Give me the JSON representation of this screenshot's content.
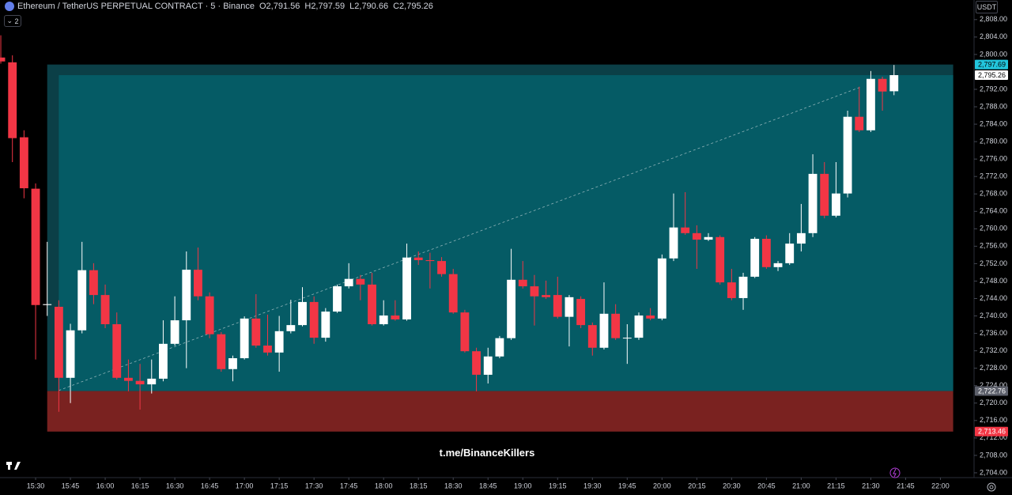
{
  "header": {
    "symbol": "Ethereum / TetherUS PERPETUAL CONTRACT · 5 · Binance",
    "quote": [
      {
        "key": "O",
        "value": "2,791.56"
      },
      {
        "key": "H",
        "value": "2,797.59"
      },
      {
        "key": "L",
        "value": "2,790.66"
      },
      {
        "key": "C",
        "value": "2,795.26"
      }
    ],
    "indicator_count": "2",
    "currency": "USDT"
  },
  "watermark": "t.me/BinanceKillers",
  "chart_data": {
    "type": "candlestick",
    "up_color": "#ffffff",
    "down_color": "#f23645",
    "xlim": [
      -0.07,
      83.9
    ],
    "ylim": [
      2702.9,
      2812.5
    ],
    "open": [
      2799.3,
      2798.2,
      2781,
      2769.2,
      2742.5,
      2742.1,
      2725.8,
      2736.7,
      2750.5,
      2744.8,
      2738.1,
      2725.8,
      2725.1,
      2724.3,
      2725.6,
      2733.6,
      2739,
      2750.6,
      2744.5,
      2735.8,
      2727.8,
      2730.3,
      2739.4,
      2733.2,
      2731.6,
      2736.5,
      2737.9,
      2743.2,
      2735,
      2741,
      2746.8,
      2748.5,
      2747.2,
      2738.1,
      2740.1,
      2739.2,
      2753.4,
      2752.8,
      2752.6,
      2749.6,
      2740.8,
      2731.9,
      2726.5,
      2730.7,
      2734.9,
      2748.3,
      2746.8,
      2744.8,
      2744.8,
      2739.8,
      2743.9,
      2737.9,
      2732.7,
      2740.5,
      2734.9,
      2735,
      2740.1,
      2739.4,
      2753.2,
      2760.3,
      2759,
      2757.5,
      2758.1,
      2747.7,
      2744.1,
      2749,
      2757.7,
      2751.2,
      2752.1,
      2756.6,
      2759,
      2772.6,
      2763,
      2768.1,
      2785.7,
      2782.6,
      2794.4,
      2791.56
    ],
    "high": [
      2804.4,
      2799.8,
      2782.6,
      2770.4,
      2757,
      2743.6,
      2738.2,
      2757,
      2752.1,
      2747.2,
      2740.8,
      2730,
      2729,
      2730,
      2739,
      2744.5,
      2754.8,
      2755.7,
      2745.4,
      2736.3,
      2730.9,
      2739.9,
      2745,
      2740.3,
      2740,
      2743.7,
      2746.6,
      2744.5,
      2741.8,
      2747.2,
      2752.1,
      2749.4,
      2749.9,
      2743.6,
      2743.6,
      2756.6,
      2754.8,
      2754.5,
      2753.5,
      2750.8,
      2741.4,
      2732.7,
      2732.7,
      2735.4,
      2755.4,
      2752.6,
      2749.4,
      2748.1,
      2749,
      2744.8,
      2744.5,
      2738.5,
      2747.7,
      2742.7,
      2738.1,
      2740.8,
      2741.8,
      2754.1,
      2768.1,
      2768.4,
      2760.8,
      2759,
      2758.5,
      2750.8,
      2749.9,
      2758.1,
      2758.5,
      2752.6,
      2759,
      2765.7,
      2777.1,
      2775.3,
      2775.3,
      2787.1,
      2792.6,
      2796.2,
      2794.9,
      2797.59
    ],
    "low": [
      2797.9,
      2775.3,
      2767,
      2730,
      2740,
      2718,
      2720,
      2736,
      2742.7,
      2737.2,
      2725.4,
      2722.7,
      2718.5,
      2722.2,
      2725,
      2733.2,
      2728,
      2743.6,
      2734.9,
      2727.2,
      2725,
      2730,
      2732.7,
      2730.9,
      2727.2,
      2736,
      2737.6,
      2733.6,
      2734.1,
      2740.7,
      2746.3,
      2743.6,
      2737.8,
      2737.8,
      2738.9,
      2738.9,
      2751.7,
      2746.3,
      2749,
      2740.5,
      2731.6,
      2722.7,
      2724.5,
      2730.3,
      2734.5,
      2746.3,
      2737.8,
      2743.9,
      2739.4,
      2733,
      2737.2,
      2730.9,
      2732.3,
      2734.5,
      2729,
      2734.5,
      2739,
      2739,
      2752.6,
      2758.6,
      2750.8,
      2757.2,
      2747.2,
      2743.6,
      2741.4,
      2748.7,
      2750.8,
      2750.3,
      2751.7,
      2754.8,
      2758.1,
      2762.4,
      2762.6,
      2767.2,
      2782.2,
      2782.2,
      2787.1,
      2790.66
    ],
    "close": [
      2798.4,
      2780.8,
      2769.3,
      2742.5,
      2742.7,
      2725.8,
      2736.7,
      2750.5,
      2744.8,
      2738.1,
      2725.8,
      2725.1,
      2724.3,
      2725.6,
      2733.6,
      2739,
      2750.6,
      2744.5,
      2735.8,
      2727.8,
      2730.3,
      2739.4,
      2733.2,
      2731.6,
      2736.5,
      2737.9,
      2743.2,
      2735,
      2741,
      2746.8,
      2748.5,
      2747.2,
      2738.1,
      2740.1,
      2739.2,
      2753.4,
      2752.8,
      2752.6,
      2749.6,
      2740.8,
      2731.9,
      2726.5,
      2730.7,
      2734.9,
      2748.3,
      2746.8,
      2744.5,
      2744.3,
      2739.8,
      2744.3,
      2737.9,
      2732.7,
      2740.5,
      2734.9,
      2735,
      2740.1,
      2739.4,
      2753.2,
      2760.3,
      2759,
      2757.5,
      2758.1,
      2747.7,
      2744.1,
      2749,
      2757.7,
      2751.2,
      2752.1,
      2756.6,
      2759,
      2772.6,
      2763,
      2768.1,
      2785.7,
      2782.6,
      2794.4,
      2791.5,
      2795.26
    ],
    "zones": [
      {
        "from": 2722.76,
        "to": 2797.69,
        "x": [
          4,
          82.1
        ],
        "color": "#0b3f47"
      },
      {
        "from": 2722.76,
        "to": 2795.26,
        "x": [
          5,
          82.1
        ],
        "color": "#055b65"
      },
      {
        "from": 2713.46,
        "to": 2722.76,
        "x": [
          4,
          82.1
        ],
        "color": "#7a2220"
      }
    ],
    "trend_line": {
      "x": [
        5,
        74.2
      ],
      "y": [
        2722.9,
        2792.6
      ],
      "color": "#8fb3b8"
    },
    "price_labels": [
      {
        "value": 2797.69,
        "label": "2,797.69",
        "bg": "#22c5dc",
        "fg": "#000000"
      },
      {
        "value": 2795.26,
        "label": "2,795.26",
        "bg": "#ffffff",
        "fg": "#000000"
      },
      {
        "value": 2722.76,
        "label": "2,722.76",
        "bg": "#5d606b",
        "fg": "#ffffff"
      },
      {
        "value": 2713.46,
        "label": "2,713.46",
        "bg": "#f23645",
        "fg": "#ffffff"
      }
    ],
    "yticks": [
      {
        "value": 2808,
        "label": "2,808.00"
      },
      {
        "value": 2804,
        "label": "2,804.00"
      },
      {
        "value": 2800,
        "label": "2,800.00"
      },
      {
        "value": 2792,
        "label": "2,792.00"
      },
      {
        "value": 2788,
        "label": "2,788.00"
      },
      {
        "value": 2784,
        "label": "2,784.00"
      },
      {
        "value": 2780,
        "label": "2,780.00"
      },
      {
        "value": 2776,
        "label": "2,776.00"
      },
      {
        "value": 2772,
        "label": "2,772.00"
      },
      {
        "value": 2768,
        "label": "2,768.00"
      },
      {
        "value": 2764,
        "label": "2,764.00"
      },
      {
        "value": 2760,
        "label": "2,760.00"
      },
      {
        "value": 2756,
        "label": "2,756.00"
      },
      {
        "value": 2752,
        "label": "2,752.00"
      },
      {
        "value": 2748,
        "label": "2,748.00"
      },
      {
        "value": 2744,
        "label": "2,744.00"
      },
      {
        "value": 2740,
        "label": "2,740.00"
      },
      {
        "value": 2736,
        "label": "2,736.00"
      },
      {
        "value": 2732,
        "label": "2,732.00"
      },
      {
        "value": 2728,
        "label": "2,728.00"
      },
      {
        "value": 2724,
        "label": "2,724.00"
      },
      {
        "value": 2720,
        "label": "2,720.00"
      },
      {
        "value": 2716,
        "label": "2,716.00"
      },
      {
        "value": 2712,
        "label": "2,712.00"
      },
      {
        "value": 2708,
        "label": "2,708.00"
      },
      {
        "value": 2704,
        "label": "2,704.00"
      }
    ],
    "xticks": [
      {
        "value": 3,
        "label": "15:30"
      },
      {
        "value": 6,
        "label": "15:45"
      },
      {
        "value": 9,
        "label": "16:00"
      },
      {
        "value": 12,
        "label": "16:15"
      },
      {
        "value": 15,
        "label": "16:30"
      },
      {
        "value": 18,
        "label": "16:45"
      },
      {
        "value": 21,
        "label": "17:00"
      },
      {
        "value": 24,
        "label": "17:15"
      },
      {
        "value": 27,
        "label": "17:30"
      },
      {
        "value": 30,
        "label": "17:45"
      },
      {
        "value": 33,
        "label": "18:00"
      },
      {
        "value": 36,
        "label": "18:15"
      },
      {
        "value": 39,
        "label": "18:30"
      },
      {
        "value": 42,
        "label": "18:45"
      },
      {
        "value": 45,
        "label": "19:00"
      },
      {
        "value": 48,
        "label": "19:15"
      },
      {
        "value": 51,
        "label": "19:30"
      },
      {
        "value": 54,
        "label": "19:45"
      },
      {
        "value": 57,
        "label": "20:00"
      },
      {
        "value": 60,
        "label": "20:15"
      },
      {
        "value": 63,
        "label": "20:30"
      },
      {
        "value": 66,
        "label": "20:45"
      },
      {
        "value": 69,
        "label": "21:00"
      },
      {
        "value": 72,
        "label": "21:15"
      },
      {
        "value": 75,
        "label": "21:30"
      },
      {
        "value": 78,
        "label": "21:45"
      },
      {
        "value": 81,
        "label": "22:00"
      }
    ]
  }
}
